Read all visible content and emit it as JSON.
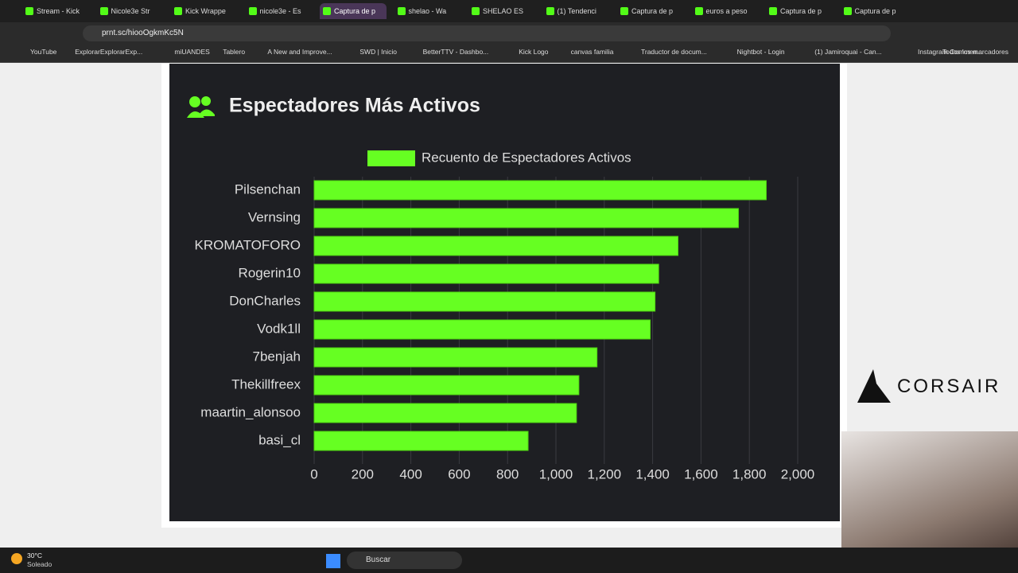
{
  "browser": {
    "tabs": [
      "Stream - Kick",
      "Nicole3e Str",
      "Kick Wrappe",
      "nicole3e - Es",
      "Captura de p",
      "shelao - Wa",
      "SHELAO ES",
      "(1) Tendenci",
      "Captura de p",
      "euros a peso",
      "Captura de p",
      "Captura de p"
    ],
    "active_tab": 4,
    "address": "prnt.sc/hiooOgkmKc5N",
    "bookmarks": [
      "YouTube",
      "ExplorarExplorarExp...",
      "miUANDES",
      "Tablero",
      "A New and Improve...",
      "SWD | Inicio",
      "BetterTTV - Dashbo...",
      "Kick Logo",
      "canvas familia",
      "Traductor de docum...",
      "Nightbot - Login",
      "(1) Jamiroquai - Can...",
      "Instagram Commen..."
    ],
    "all_bookmarks": "Todos los marcadores"
  },
  "overlay": {
    "brand": "CORSAIR"
  },
  "taskbar": {
    "temperature": "30°C",
    "weather": "Soleado",
    "search": "Buscar"
  },
  "chart_data": {
    "type": "bar",
    "orientation": "horizontal",
    "title": "Espectadores Más Activos",
    "categories": [
      "Pilsenchan",
      "Vernsing",
      "KROMATOFORO",
      "Rogerin10",
      "DonCharles",
      "Vodk1ll",
      "7benjah",
      "Thekillfreex",
      "maartin_alonsoo",
      "basi_cl"
    ],
    "series": [
      {
        "name": "Recuento de Espectadores Activos",
        "color": "#66ff22",
        "values": [
          1870,
          1755,
          1505,
          1425,
          1410,
          1390,
          1170,
          1095,
          1085,
          885
        ]
      }
    ],
    "xlim": [
      0,
      2000
    ],
    "xticks": [
      0,
      200,
      400,
      600,
      800,
      {
        "value": 1000,
        "label": "1,000"
      },
      {
        "value": 1200,
        "label": "1,200"
      },
      {
        "value": 1400,
        "label": "1,400"
      },
      {
        "value": 1600,
        "label": "1,600"
      },
      {
        "value": 1800,
        "label": "1,800"
      },
      {
        "value": 2000,
        "label": "2,000"
      }
    ],
    "grid": true
  }
}
